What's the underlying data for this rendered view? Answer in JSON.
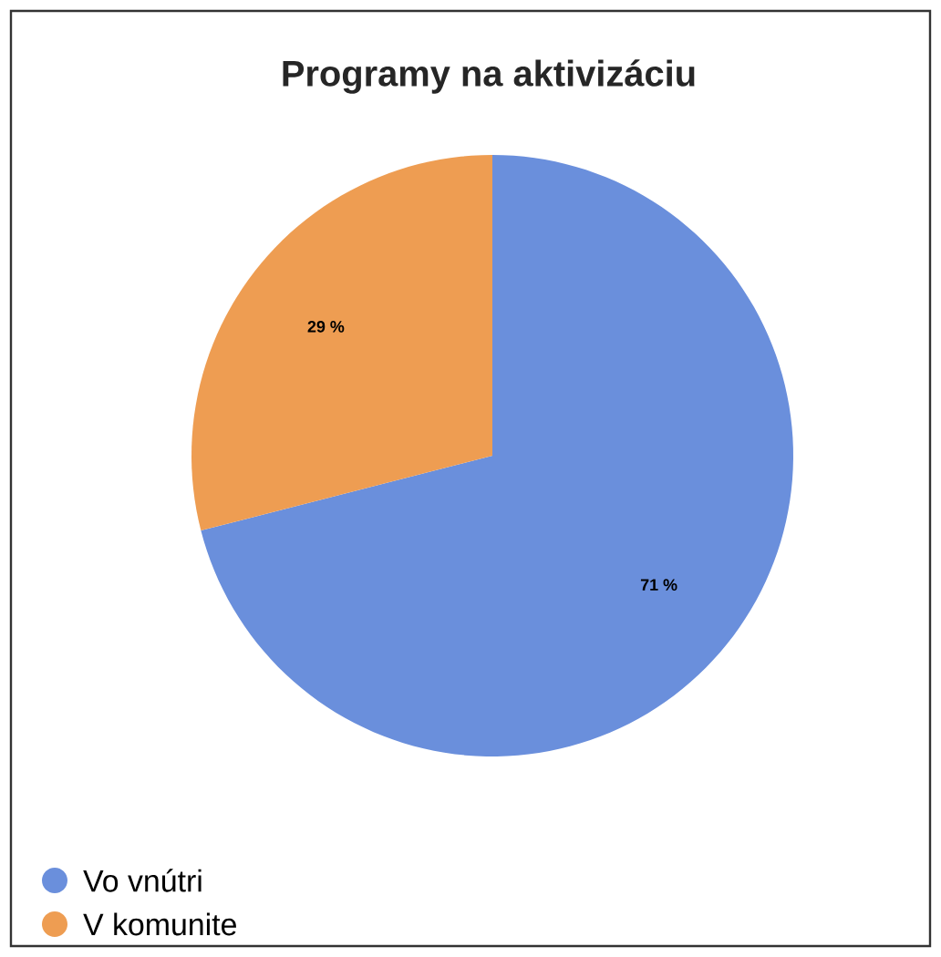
{
  "chart_data": {
    "type": "pie",
    "title": "Programy na aktivizáciu",
    "categories": [
      "Vo vnútri",
      "V komunite"
    ],
    "values": [
      71,
      29
    ],
    "value_labels": [
      "71 %",
      "29 %"
    ],
    "colors": [
      "#6a8fdc",
      "#ee9d52"
    ],
    "legend": "bottom left"
  }
}
